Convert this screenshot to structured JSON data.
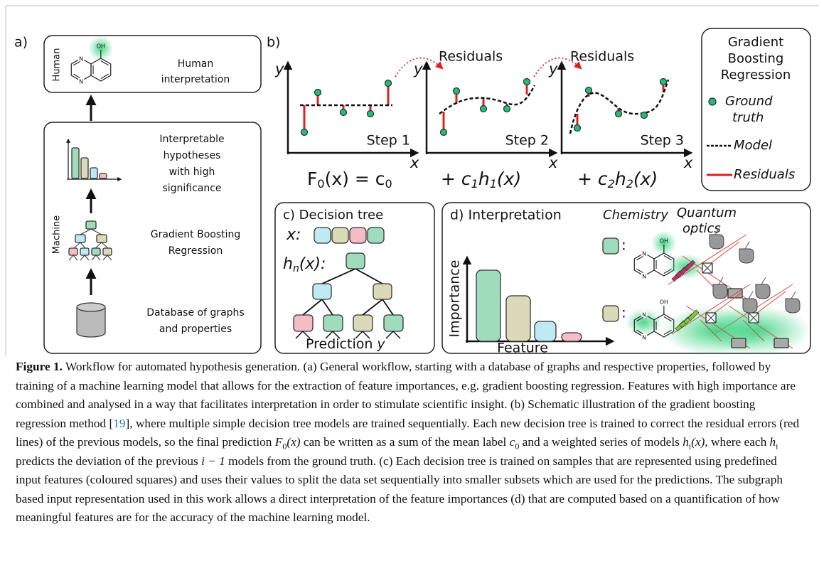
{
  "panel_a": {
    "label": "a)",
    "human_label": "Human",
    "human_text": [
      "Human",
      "interpretation"
    ],
    "oh": "OH",
    "n_atom": "N",
    "machine_label": "Machine",
    "hypotheses": [
      "Interpretable",
      "hypotheses",
      "with high",
      "significance"
    ],
    "gbr": [
      "Gradient Boosting",
      "Regression"
    ],
    "database": [
      "Database of graphs",
      "and properties"
    ]
  },
  "panel_b": {
    "label": "b)",
    "y_axis": "y",
    "x_axis": "x",
    "residuals": "Residuals",
    "steps": [
      "Step 1",
      "Step 2",
      "Step 3"
    ],
    "formulas": [
      [
        "F",
        "0",
        "(x) = c",
        "0"
      ],
      [
        "+ ",
        "c",
        "1",
        "h",
        "1",
        "(x)"
      ],
      [
        "+ ",
        "c",
        "2",
        "h",
        "2",
        "(x)"
      ]
    ]
  },
  "legend": {
    "title": [
      "Gradient",
      "Boosting",
      "Regression"
    ],
    "ground_truth": [
      "Ground",
      "truth"
    ],
    "model": "Model",
    "residuals": "Residuals"
  },
  "panel_c": {
    "title": "c) Decision tree",
    "x_label": "x:",
    "h_label": [
      "h",
      "n",
      "(x):"
    ],
    "prediction": "Prediction",
    "prediction_var": "y"
  },
  "panel_d": {
    "title": "d) Interpretation",
    "chemistry": "Chemistry",
    "quantum_optics": [
      "Quantum",
      "optics"
    ],
    "y_axis": "Importance",
    "x_axis": "Feature",
    "colon": ":"
  },
  "caption": {
    "label": "Figure 1.",
    "runs": [
      "Workflow for automated hypothesis generation. (a) General workflow, starting with a database of graphs and respective properties, followed by training of a machine learning model that allows for the extraction of feature importances, e.g. gradient boosting regression. Features with high importance are combined and analysed in a way that facilitates interpretation in order to stimulate scientific insight. (b) Schematic illustration of the gradient boosting regression method [",
      "19",
      "], where multiple simple decision tree models are trained sequentially. Each new decision tree is trained to correct the residual errors (red lines) of the previous models, so the final prediction ",
      "F",
      "0",
      "(x)",
      " can be written as a sum of the mean label ",
      "c",
      "0",
      " and a weighted series of models ",
      "h",
      "i",
      "(x)",
      ", where each ",
      "h",
      "i",
      " predicts the deviation of the previous ",
      "i − 1",
      " models from the ground truth. (c) Each decision tree is trained on samples that are represented using predefined input features (coloured squares) and uses their values to split the data set sequentially into smaller subsets which are used for the predictions. The subgraph based input representation used in this work allows a direct interpretation of the feature importances (d) that are computed based on a quantification of how meaningful features are for the accuracy of the machine learning model."
    ]
  }
}
